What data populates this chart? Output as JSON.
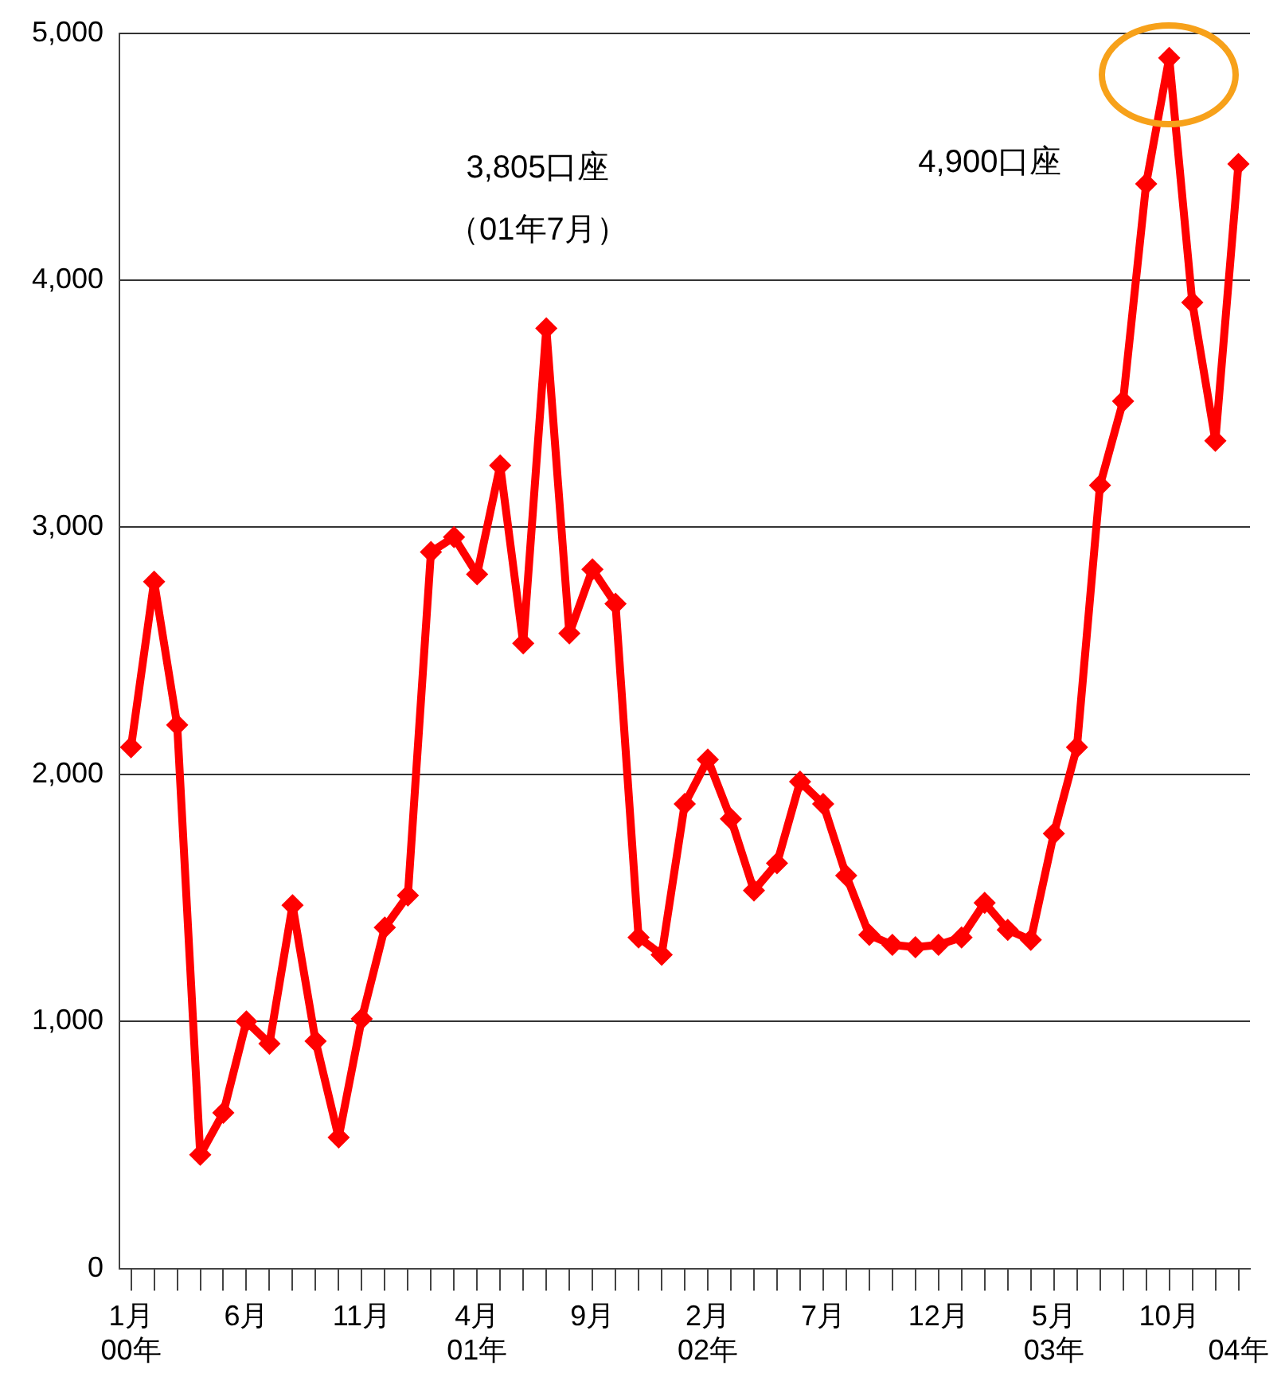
{
  "chart_data": {
    "type": "line",
    "categories": [
      "1月\n00年",
      null,
      null,
      null,
      null,
      "6月",
      null,
      null,
      null,
      null,
      "11月",
      null,
      null,
      null,
      null,
      "4月\n01年",
      null,
      null,
      null,
      null,
      "9月",
      null,
      null,
      null,
      null,
      "2月\n02年",
      null,
      null,
      null,
      null,
      "7月",
      null,
      null,
      null,
      null,
      "12月",
      null,
      null,
      null,
      null,
      "5月\n03年",
      null,
      null,
      null,
      null,
      "10月",
      null,
      null,
      "\n04年"
    ],
    "series": [
      {
        "color": "#ff0000",
        "values": [
          2110,
          2780,
          2200,
          460,
          630,
          1000,
          910,
          1470,
          920,
          530,
          1010,
          1380,
          1510,
          2900,
          2960,
          2810,
          3250,
          2530,
          3805,
          2570,
          2830,
          2690,
          1340,
          1270,
          1880,
          2060,
          1820,
          1530,
          1640,
          1970,
          1880,
          1590,
          1350,
          1310,
          1300,
          1310,
          1340,
          1480,
          1370,
          1330,
          1760,
          2110,
          3170,
          3510,
          4390,
          4900,
          3910,
          3350,
          4470
        ]
      }
    ],
    "ylim": [
      0,
      5000
    ],
    "yticks": [
      {
        "value": 0,
        "label": "0"
      },
      {
        "value": 1000,
        "label": "1,000"
      },
      {
        "value": 2000,
        "label": "2,000"
      },
      {
        "value": 3000,
        "label": "3,000"
      },
      {
        "value": 4000,
        "label": "4,000"
      },
      {
        "value": 5000,
        "label": "5,000"
      }
    ],
    "grid": "y",
    "legend": false,
    "marker": "diamond",
    "line_style": "solid",
    "annotations": [
      "3,805口座",
      "（01年7月）",
      "4,900口座"
    ]
  }
}
